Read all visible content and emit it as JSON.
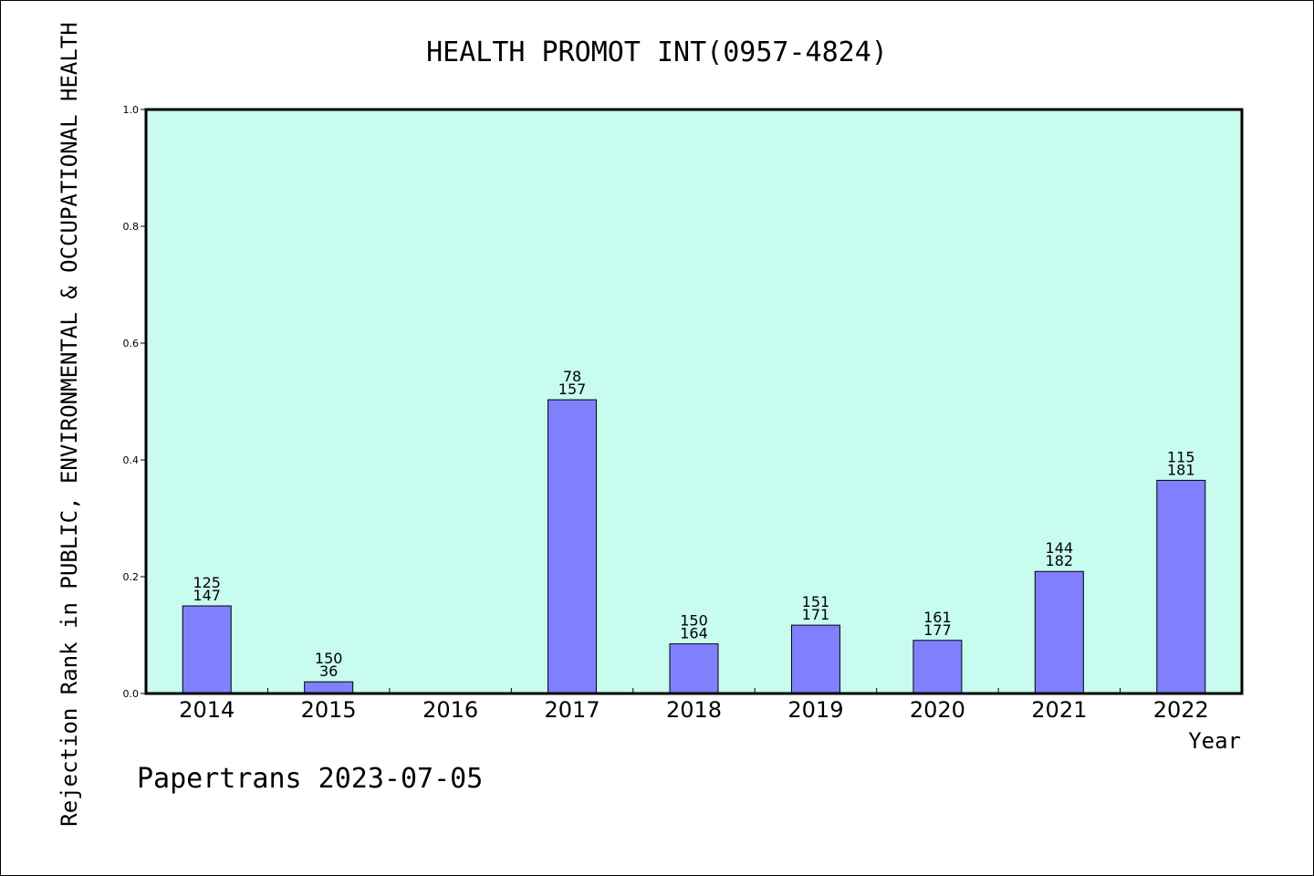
{
  "chart_data": {
    "type": "bar",
    "title": "HEALTH PROMOT INT(0957-4824)",
    "xlabel": "Year",
    "ylabel": "Rejection Rank in PUBLIC, ENVIRONMENTAL & OCCUPATIONAL HEALTH",
    "ylim": [
      0,
      1.0
    ],
    "yticks": [
      "0.0",
      "0.2",
      "0.4",
      "0.6",
      "0.8",
      "1.0"
    ],
    "categories": [
      "2014",
      "2015",
      "2016",
      "2017",
      "2018",
      "2019",
      "2020",
      "2021",
      "2022"
    ],
    "values": [
      0.15,
      0.02,
      null,
      0.503,
      0.085,
      0.117,
      0.091,
      0.209,
      0.365
    ],
    "labels_top": [
      "125",
      "150",
      "",
      "78",
      "150",
      "151",
      "161",
      "144",
      "115"
    ],
    "labels_bottom": [
      "147",
      "36",
      "",
      "157",
      "164",
      "171",
      "177",
      "182",
      "181"
    ],
    "grid": false,
    "colors": {
      "plot_bg": "#c8fcee",
      "bar": "#8080ff",
      "axis": "#000000"
    }
  },
  "footer": "Papertrans 2023-07-05"
}
